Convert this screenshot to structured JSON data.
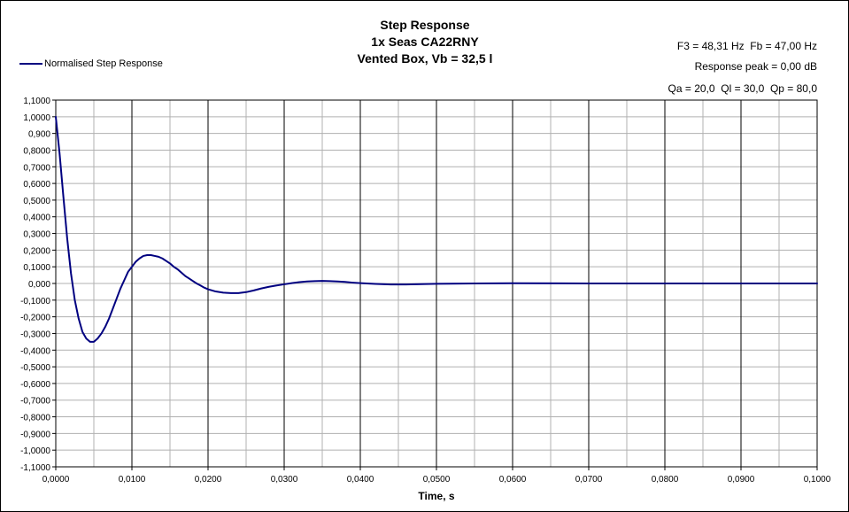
{
  "chart_data": {
    "type": "line",
    "title": [
      "Step Response",
      "1x Seas CA22RNY",
      "Vented Box, Vb = 32,5 l"
    ],
    "xlabel": "Time, s",
    "ylabel": "",
    "xlim": [
      0,
      0.1
    ],
    "ylim": [
      -1.1,
      1.1
    ],
    "x_ticks": [
      "0,0000",
      "0,0100",
      "0,0200",
      "0,0300",
      "0,0400",
      "0,0500",
      "0,0600",
      "0,0700",
      "0,0800",
      "0,0900",
      "0,1000"
    ],
    "y_ticks": [
      "1,1000",
      "1,0000",
      "0,900",
      "0,8000",
      "0,7000",
      "0,6000",
      "0,5000",
      "0,4000",
      "0,3000",
      "0,2000",
      "0,1000",
      "0,000",
      "-0,1000",
      "-0,2000",
      "-0,3000",
      "-0,4000",
      "-0,5000",
      "-0,6000",
      "-0,7000",
      "-0,8000",
      "-0,9000",
      "-1,0000",
      "-1,1000"
    ],
    "grid": true,
    "legend_position": "top-left",
    "series": [
      {
        "name": "Normalised Step Response",
        "color": "#000080",
        "x": [
          0,
          0.0005,
          0.001,
          0.0015,
          0.002,
          0.0025,
          0.003,
          0.0035,
          0.004,
          0.0045,
          0.005,
          0.0055,
          0.006,
          0.0065,
          0.007,
          0.0075,
          0.008,
          0.0085,
          0.009,
          0.0095,
          0.01,
          0.0105,
          0.011,
          0.0115,
          0.012,
          0.0125,
          0.013,
          0.0135,
          0.014,
          0.0145,
          0.015,
          0.0155,
          0.016,
          0.0165,
          0.017,
          0.0175,
          0.018,
          0.0185,
          0.019,
          0.0195,
          0.02,
          0.021,
          0.022,
          0.023,
          0.024,
          0.025,
          0.026,
          0.027,
          0.028,
          0.029,
          0.03,
          0.031,
          0.032,
          0.033,
          0.034,
          0.035,
          0.036,
          0.037,
          0.038,
          0.039,
          0.04,
          0.042,
          0.044,
          0.046,
          0.048,
          0.05,
          0.055,
          0.06,
          0.07,
          0.08,
          0.09,
          0.1
        ],
        "y": [
          1.0,
          0.78,
          0.52,
          0.27,
          0.06,
          -0.1,
          -0.21,
          -0.29,
          -0.33,
          -0.35,
          -0.35,
          -0.33,
          -0.3,
          -0.26,
          -0.21,
          -0.15,
          -0.09,
          -0.03,
          0.02,
          0.07,
          0.1,
          0.13,
          0.15,
          0.165,
          0.17,
          0.17,
          0.165,
          0.16,
          0.15,
          0.135,
          0.12,
          0.1,
          0.085,
          0.065,
          0.045,
          0.03,
          0.015,
          0.0,
          -0.012,
          -0.025,
          -0.035,
          -0.048,
          -0.055,
          -0.058,
          -0.058,
          -0.052,
          -0.042,
          -0.03,
          -0.02,
          -0.012,
          -0.005,
          0.002,
          0.008,
          0.012,
          0.014,
          0.015,
          0.014,
          0.012,
          0.009,
          0.005,
          0.002,
          -0.003,
          -0.006,
          -0.006,
          -0.004,
          -0.002,
          0.0,
          0.001,
          0.0,
          0.0,
          0.0,
          0.0
        ]
      }
    ]
  },
  "info": {
    "line1": "F3 = 48,31 Hz  Fb = 47,00 Hz",
    "line2": "Response peak = 0,00 dB",
    "line3": "Qa = 20,0  Ql = 30,0  Qp = 80,0"
  }
}
